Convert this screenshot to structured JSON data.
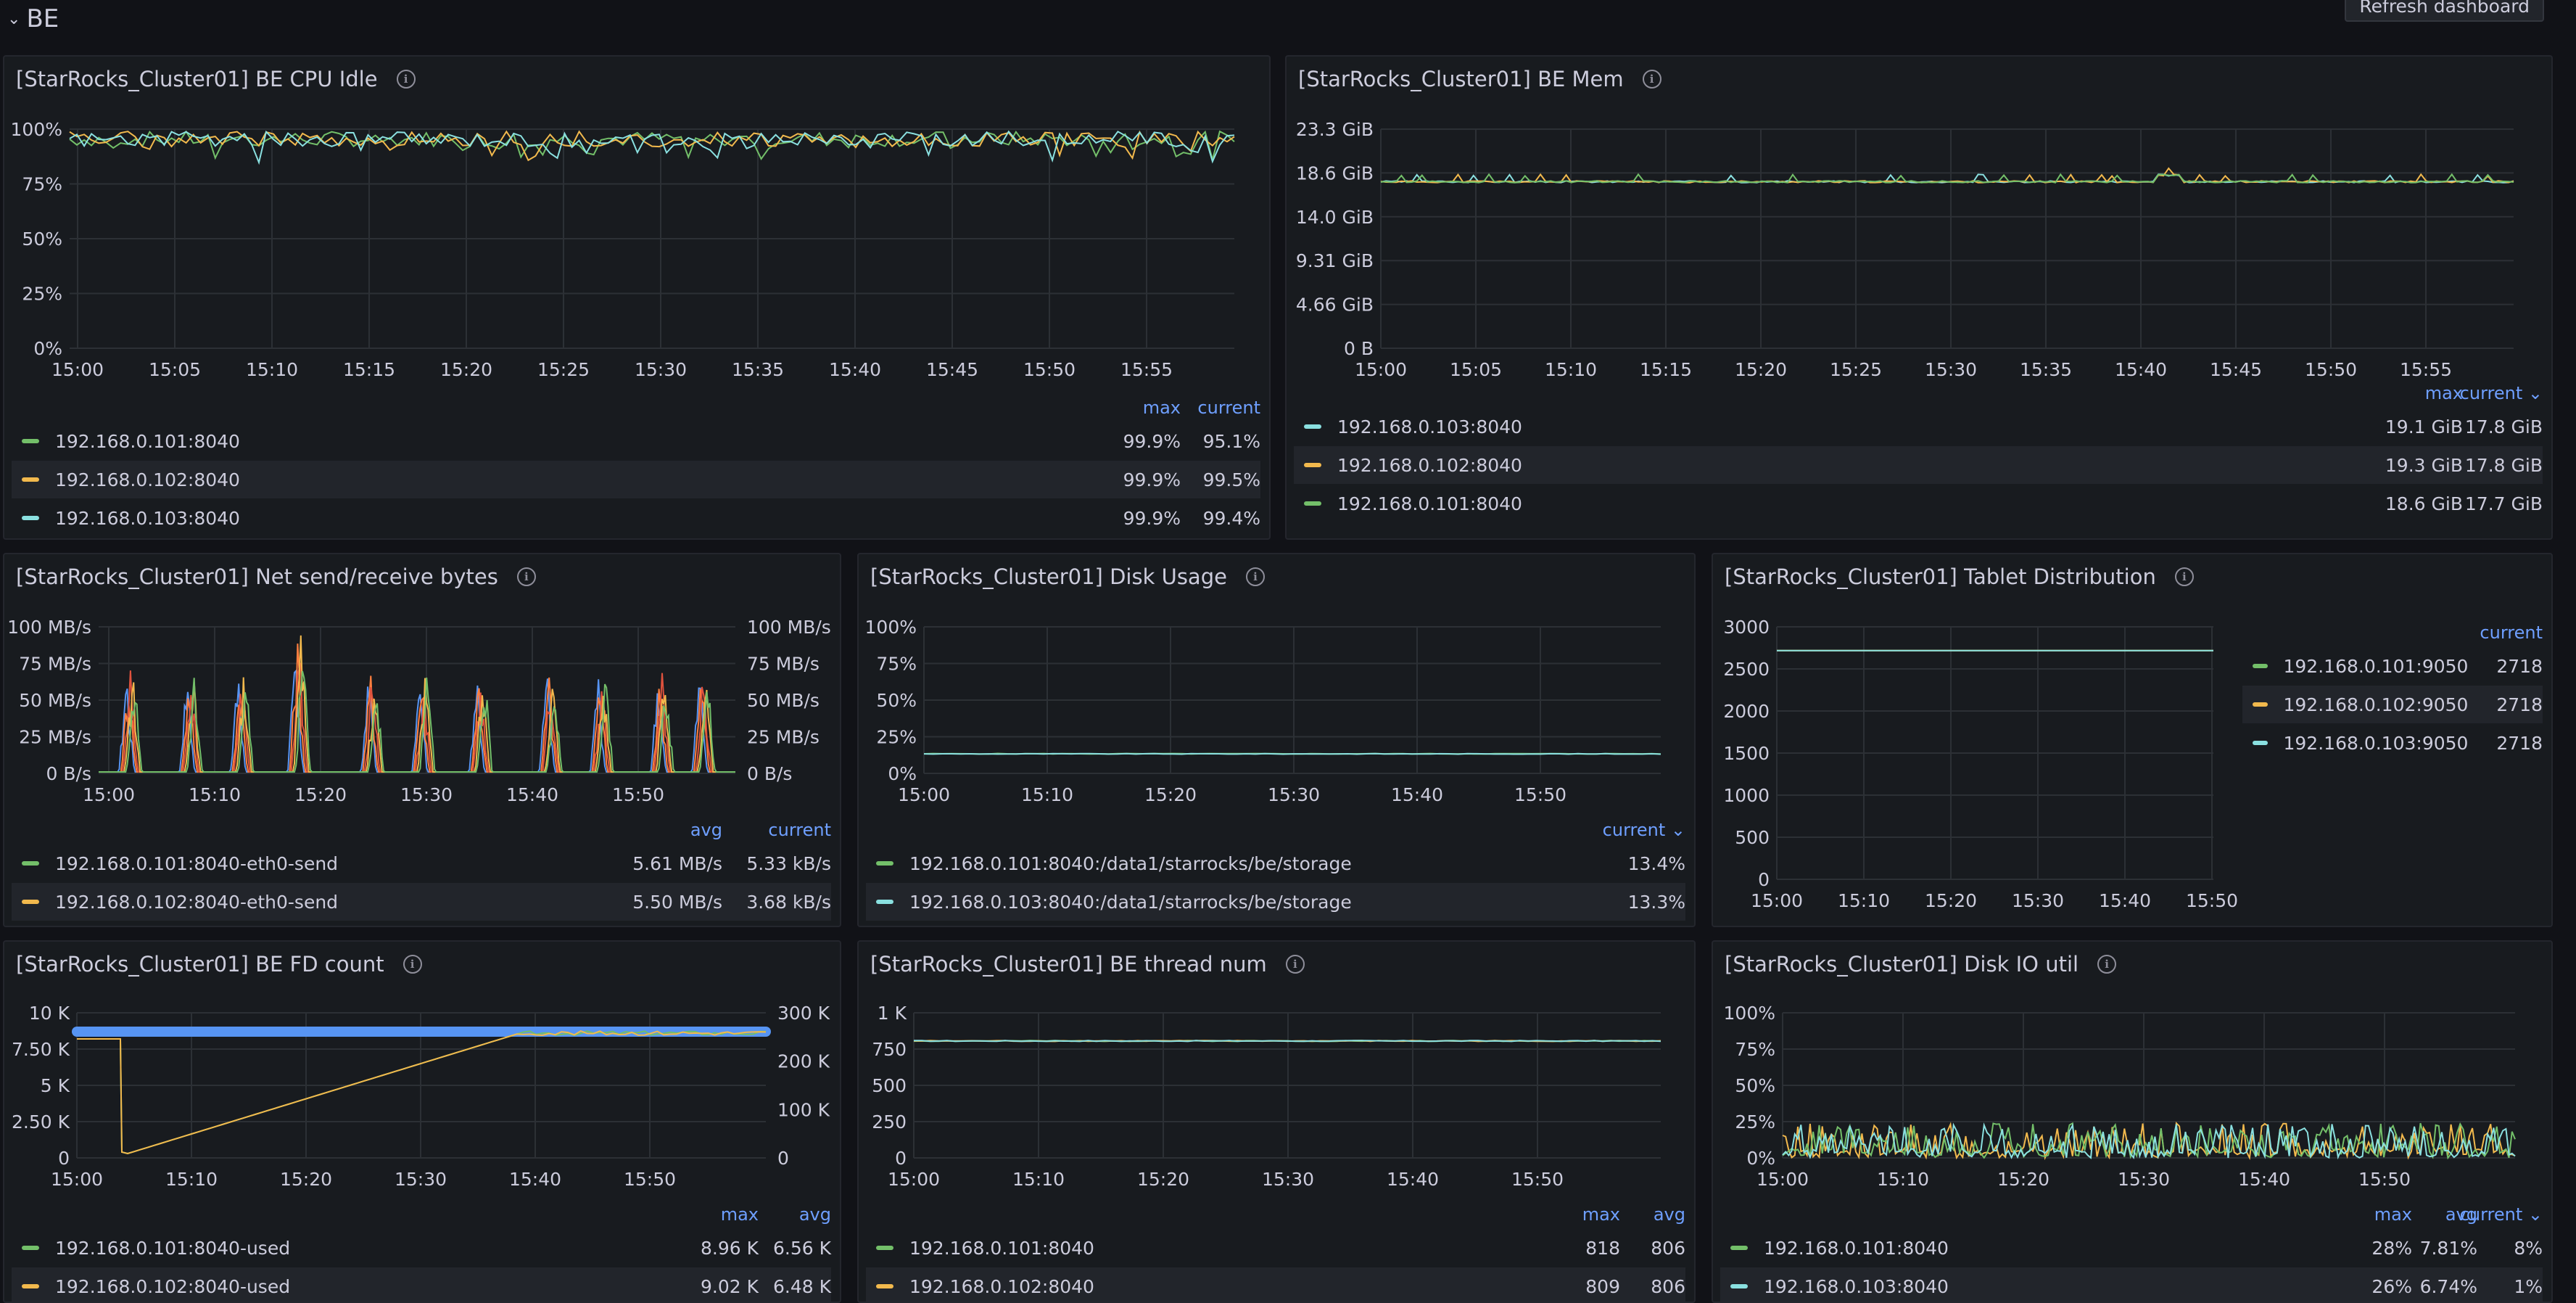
{
  "section": {
    "title": "BE",
    "refresh_label": "Refresh dashboard"
  },
  "colors": {
    "green": "#73bf69",
    "yellow": "#f2b94d",
    "cyan": "#8ae0e0",
    "blue": "#5794f2",
    "orange": "#ff7f3f",
    "red": "#e0523d",
    "accent": "#6e9fff"
  },
  "panels": {
    "cpu": {
      "title": "[StarRocks_Cluster01] BE CPU Idle",
      "y_ticks": [
        "100%",
        "75%",
        "50%",
        "25%",
        "0%"
      ],
      "x_ticks": [
        "15:00",
        "15:05",
        "15:10",
        "15:15",
        "15:20",
        "15:25",
        "15:30",
        "15:35",
        "15:40",
        "15:45",
        "15:50",
        "15:55"
      ],
      "legend_headers": [
        "max",
        "current"
      ],
      "legend": [
        {
          "name": "192.168.0.101:8040",
          "color": "#73bf69",
          "values": [
            "99.9%",
            "95.1%"
          ]
        },
        {
          "name": "192.168.0.102:8040",
          "color": "#f2b94d",
          "values": [
            "99.9%",
            "99.5%"
          ]
        },
        {
          "name": "192.168.0.103:8040",
          "color": "#8ae0e0",
          "values": [
            "99.9%",
            "99.4%"
          ]
        }
      ]
    },
    "mem": {
      "title": "[StarRocks_Cluster01] BE Mem",
      "y_ticks": [
        "23.3 GiB",
        "18.6 GiB",
        "14.0 GiB",
        "9.31 GiB",
        "4.66 GiB",
        "0 B"
      ],
      "x_ticks": [
        "15:00",
        "15:05",
        "15:10",
        "15:15",
        "15:20",
        "15:25",
        "15:30",
        "15:35",
        "15:40",
        "15:45",
        "15:50",
        "15:55"
      ],
      "legend_headers": [
        "max",
        "current ⌄"
      ],
      "legend": [
        {
          "name": "192.168.0.103:8040",
          "color": "#8ae0e0",
          "values": [
            "19.1 GiB",
            "17.8 GiB"
          ]
        },
        {
          "name": "192.168.0.102:8040",
          "color": "#f2b94d",
          "values": [
            "19.3 GiB",
            "17.8 GiB"
          ]
        },
        {
          "name": "192.168.0.101:8040",
          "color": "#73bf69",
          "values": [
            "18.6 GiB",
            "17.7 GiB"
          ]
        }
      ]
    },
    "net": {
      "title": "[StarRocks_Cluster01] Net send/receive bytes",
      "y_ticks": [
        "100 MB/s",
        "75 MB/s",
        "50 MB/s",
        "25 MB/s",
        "0 B/s"
      ],
      "x_ticks": [
        "15:00",
        "15:10",
        "15:20",
        "15:30",
        "15:40",
        "15:50"
      ],
      "legend_headers": [
        "avg",
        "current"
      ],
      "legend": [
        {
          "name": "192.168.0.101:8040-eth0-send",
          "color": "#73bf69",
          "values": [
            "5.61 MB/s",
            "5.33 kB/s"
          ]
        },
        {
          "name": "192.168.0.102:8040-eth0-send",
          "color": "#f2b94d",
          "values": [
            "5.50 MB/s",
            "3.68 kB/s"
          ]
        }
      ]
    },
    "disk": {
      "title": "[StarRocks_Cluster01] Disk Usage",
      "y_ticks": [
        "100%",
        "75%",
        "50%",
        "25%",
        "0%"
      ],
      "x_ticks": [
        "15:00",
        "15:10",
        "15:20",
        "15:30",
        "15:40",
        "15:50"
      ],
      "legend_headers": [
        "current ⌄"
      ],
      "legend": [
        {
          "name": "192.168.0.101:8040:/data1/starrocks/be/storage",
          "color": "#73bf69",
          "values": [
            "13.4%"
          ]
        },
        {
          "name": "192.168.0.103:8040:/data1/starrocks/be/storage",
          "color": "#8ae0e0",
          "values": [
            "13.3%"
          ]
        }
      ]
    },
    "tablet": {
      "title": "[StarRocks_Cluster01] Tablet Distribution",
      "y_ticks": [
        "3000",
        "2500",
        "2000",
        "1500",
        "1000",
        "500",
        "0"
      ],
      "x_ticks": [
        "15:00",
        "15:10",
        "15:20",
        "15:30",
        "15:40",
        "15:50"
      ],
      "legend_headers": [
        "current"
      ],
      "legend": [
        {
          "name": "192.168.0.101:9050",
          "color": "#73bf69",
          "values": [
            "2718"
          ]
        },
        {
          "name": "192.168.0.102:9050",
          "color": "#f2b94d",
          "values": [
            "2718"
          ]
        },
        {
          "name": "192.168.0.103:9050",
          "color": "#8ae0e0",
          "values": [
            "2718"
          ]
        }
      ]
    },
    "fd": {
      "title": "[StarRocks_Cluster01] BE FD count",
      "y_ticks": [
        "10 K",
        "7.50 K",
        "5 K",
        "2.50 K",
        "0"
      ],
      "y2_ticks": [
        "300 K",
        "200 K",
        "100 K",
        "0"
      ],
      "x_ticks": [
        "15:00",
        "15:10",
        "15:20",
        "15:30",
        "15:40",
        "15:50"
      ],
      "legend_headers": [
        "max",
        "avg"
      ],
      "legend": [
        {
          "name": "192.168.0.101:8040-used",
          "color": "#73bf69",
          "values": [
            "8.96 K",
            "6.56 K"
          ]
        },
        {
          "name": "192.168.0.102:8040-used",
          "color": "#f2b94d",
          "values": [
            "9.02 K",
            "6.48 K"
          ]
        }
      ]
    },
    "thread": {
      "title": "[StarRocks_Cluster01] BE thread num",
      "y_ticks": [
        "1 K",
        "750",
        "500",
        "250",
        "0"
      ],
      "x_ticks": [
        "15:00",
        "15:10",
        "15:20",
        "15:30",
        "15:40",
        "15:50"
      ],
      "legend_headers": [
        "max",
        "avg"
      ],
      "legend": [
        {
          "name": "192.168.0.101:8040",
          "color": "#73bf69",
          "values": [
            "818",
            "806"
          ]
        },
        {
          "name": "192.168.0.102:8040",
          "color": "#f2b94d",
          "values": [
            "809",
            "806"
          ]
        }
      ]
    },
    "diskio": {
      "title": "[StarRocks_Cluster01] Disk IO util",
      "y_ticks": [
        "100%",
        "75%",
        "50%",
        "25%",
        "0%"
      ],
      "x_ticks": [
        "15:00",
        "15:10",
        "15:20",
        "15:30",
        "15:40",
        "15:50"
      ],
      "legend_headers": [
        "max",
        "avg",
        "current ⌄"
      ],
      "legend": [
        {
          "name": "192.168.0.101:8040",
          "color": "#73bf69",
          "values": [
            "28%",
            "7.81%",
            "8%"
          ]
        },
        {
          "name": "192.168.0.103:8040",
          "color": "#8ae0e0",
          "values": [
            "26%",
            "6.74%",
            "1%"
          ]
        }
      ]
    }
  }
}
